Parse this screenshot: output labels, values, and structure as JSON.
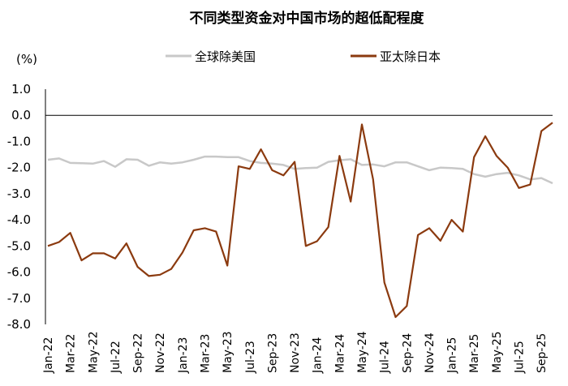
{
  "chart_data": {
    "type": "line",
    "title": "不同类型资金对中国市场的超低配程度",
    "unit_label": "(%)",
    "ylim": [
      -8.0,
      1.0
    ],
    "y_ticks": [
      "1.0",
      "0.0",
      "-1.0",
      "-2.0",
      "-3.0",
      "-4.0",
      "-5.0",
      "-6.0",
      "-7.0",
      "-8.0"
    ],
    "y_tick_values": [
      1,
      0,
      -1,
      -2,
      -3,
      -4,
      -5,
      -6,
      -7,
      -8
    ],
    "x_ticks": [
      "Jan-22",
      "Mar-22",
      "May-22",
      "Jul-22",
      "Sep-22",
      "Nov-22",
      "Jan-23",
      "Mar-23",
      "May-23",
      "Jul-23",
      "Sep-23",
      "Nov-23",
      "Jan-24",
      "Mar-24",
      "May-24",
      "Jul-24",
      "Sep-24",
      "Nov-24",
      "Jan-25",
      "Mar-25",
      "May-25",
      "Jul-25",
      "Sep-25"
    ],
    "x": [
      "Jan-22",
      "Feb-22",
      "Mar-22",
      "Apr-22",
      "May-22",
      "Jun-22",
      "Jul-22",
      "Aug-22",
      "Sep-22",
      "Oct-22",
      "Nov-22",
      "Dec-22",
      "Jan-23",
      "Feb-23",
      "Mar-23",
      "Apr-23",
      "May-23",
      "Jun-23",
      "Jul-23",
      "Aug-23",
      "Sep-23",
      "Oct-23",
      "Nov-23",
      "Dec-23",
      "Jan-24",
      "Feb-24",
      "Mar-24",
      "Apr-24",
      "May-24",
      "Jun-24",
      "Jul-24",
      "Aug-24",
      "Sep-24",
      "Oct-24",
      "Nov-24",
      "Dec-24",
      "Jan-25",
      "Feb-25",
      "Mar-25",
      "Apr-25",
      "May-25",
      "Jun-25",
      "Jul-25",
      "Aug-25",
      "Sep-25",
      "Oct-25"
    ],
    "series": [
      {
        "name": "全球除美国",
        "color": "#c8c8c8",
        "values": [
          -1.7,
          -1.65,
          -1.82,
          -1.83,
          -1.85,
          -1.75,
          -1.97,
          -1.68,
          -1.7,
          -1.93,
          -1.8,
          -1.85,
          -1.8,
          -1.7,
          -1.58,
          -1.58,
          -1.6,
          -1.6,
          -1.75,
          -1.82,
          -1.85,
          -1.9,
          -2.05,
          -2.02,
          -2.0,
          -1.78,
          -1.72,
          -1.68,
          -1.9,
          -1.88,
          -1.95,
          -1.8,
          -1.8,
          -1.95,
          -2.1,
          -2.0,
          -2.02,
          -2.05,
          -2.25,
          -2.35,
          -2.25,
          -2.2,
          -2.3,
          -2.45,
          -2.4,
          -2.6
        ]
      },
      {
        "name": "亚太除日本",
        "color": "#8b3a0f",
        "values": [
          -5.0,
          -4.85,
          -4.5,
          -5.55,
          -5.28,
          -5.28,
          -5.48,
          -4.9,
          -5.8,
          -6.15,
          -6.1,
          -5.88,
          -5.25,
          -4.4,
          -4.32,
          -4.45,
          -5.75,
          -1.95,
          -2.05,
          -1.3,
          -2.1,
          -2.3,
          -1.78,
          -5.0,
          -4.82,
          -4.28,
          -1.55,
          -3.3,
          -0.35,
          -2.45,
          -6.4,
          -7.72,
          -7.3,
          -4.58,
          -4.32,
          -4.8,
          -4.0,
          -4.45,
          -1.6,
          -0.8,
          -1.55,
          -2.0,
          -2.78,
          -2.65,
          -0.6,
          -0.28
        ]
      }
    ],
    "grid": false,
    "legend_position": "top"
  }
}
